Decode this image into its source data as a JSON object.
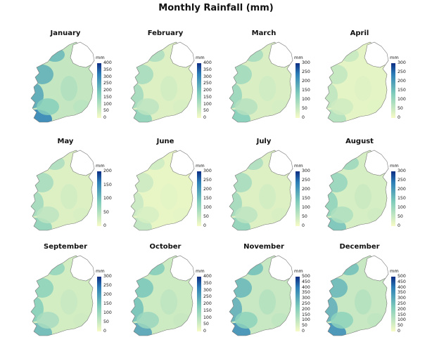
{
  "title": "Monthly Rainfall (mm)",
  "months": [
    {
      "name": "January",
      "ticks": [
        "400",
        "350",
        "300",
        "250",
        "200",
        "150",
        "100",
        "50",
        "0"
      ],
      "wetness": 0.85
    },
    {
      "name": "February",
      "ticks": [
        "400",
        "350",
        "300",
        "250",
        "200",
        "150",
        "100",
        "50",
        "0"
      ],
      "wetness": 0.45
    },
    {
      "name": "March",
      "ticks": [
        "300",
        "250",
        "200",
        "150",
        "100",
        "50",
        "0"
      ],
      "wetness": 0.5
    },
    {
      "name": "April",
      "ticks": [
        "300",
        "250",
        "200",
        "150",
        "100",
        "50",
        "0"
      ],
      "wetness": 0.3
    },
    {
      "name": "May",
      "ticks": [
        "200",
        "150",
        "100",
        "50",
        "0"
      ],
      "wetness": 0.45
    },
    {
      "name": "June",
      "ticks": [
        "300",
        "250",
        "200",
        "150",
        "100",
        "50",
        "0"
      ],
      "wetness": 0.25
    },
    {
      "name": "July",
      "ticks": [
        "300",
        "250",
        "200",
        "150",
        "100",
        "50",
        "0"
      ],
      "wetness": 0.45
    },
    {
      "name": "August",
      "ticks": [
        "300",
        "250",
        "200",
        "150",
        "100",
        "50",
        "0"
      ],
      "wetness": 0.55
    },
    {
      "name": "September",
      "ticks": [
        "300",
        "250",
        "200",
        "150",
        "100",
        "50",
        "0"
      ],
      "wetness": 0.6
    },
    {
      "name": "October",
      "ticks": [
        "400",
        "350",
        "300",
        "250",
        "200",
        "150",
        "100",
        "50",
        "0"
      ],
      "wetness": 0.7
    },
    {
      "name": "November",
      "ticks": [
        "500",
        "450",
        "400",
        "350",
        "300",
        "250",
        "200",
        "150",
        "100",
        "50",
        "0"
      ],
      "wetness": 0.8
    },
    {
      "name": "December",
      "ticks": [
        "500",
        "450",
        "400",
        "350",
        "300",
        "250",
        "200",
        "150",
        "100",
        "50",
        "0"
      ],
      "wetness": 0.8
    }
  ],
  "unit_label": "mm",
  "colors": {
    "low": "#f7fbc6",
    "mid": "#7fccbb",
    "high": "#2c7fb8",
    "max": "#0c2c84",
    "ni_fill": "#ffffff",
    "outline": "#777777"
  }
}
